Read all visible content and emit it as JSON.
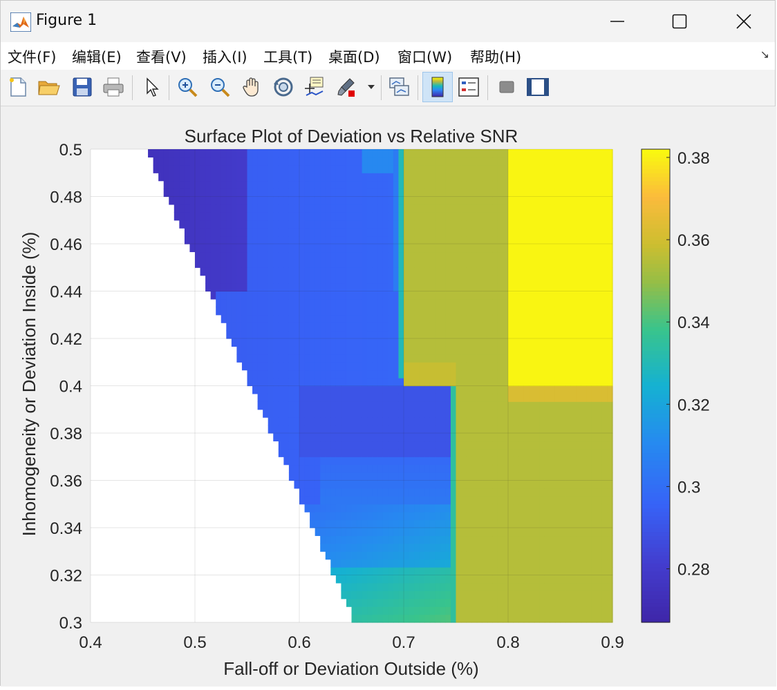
{
  "window": {
    "title": "Figure 1"
  },
  "menu": {
    "items": [
      "文件(F)",
      "编辑(E)",
      "查看(V)",
      "插入(I)",
      "工具(T)",
      "桌面(D)",
      "窗口(W)",
      "帮助(H)"
    ]
  },
  "toolbar": {
    "buttons": [
      {
        "icon": "new-figure-icon"
      },
      {
        "icon": "open-folder-icon"
      },
      {
        "icon": "save-icon"
      },
      {
        "icon": "print-icon"
      },
      {
        "icon": "pointer-icon"
      },
      {
        "icon": "zoom-in-icon"
      },
      {
        "icon": "zoom-out-icon"
      },
      {
        "icon": "pan-hand-icon"
      },
      {
        "icon": "rotate-3d-icon"
      },
      {
        "icon": "data-cursor-icon"
      },
      {
        "icon": "brush-icon"
      },
      {
        "icon": "link-plot-icon"
      },
      {
        "icon": "colorbar-icon"
      },
      {
        "icon": "legend-icon"
      },
      {
        "icon": "hide-plot-tools-icon"
      },
      {
        "icon": "show-plot-tools-icon"
      }
    ]
  },
  "chart_data": {
    "type": "heatmap",
    "title": "Surface Plot of Deviation vs Relative SNR",
    "xlabel": "Fall-off or Deviation Outside (%)",
    "ylabel": "Inhomogeneity or Deviation Inside (%)",
    "xlim": [
      0.4,
      0.9
    ],
    "ylim": [
      0.3,
      0.5
    ],
    "xticks": [
      "0.4",
      "0.5",
      "0.6",
      "0.7",
      "0.8",
      "0.9"
    ],
    "yticks": [
      "0.3",
      "0.32",
      "0.34",
      "0.36",
      "0.38",
      "0.4",
      "0.42",
      "0.44",
      "0.46",
      "0.48",
      "0.5"
    ],
    "grid": true,
    "colormap": "parula",
    "clim": [
      0.267,
      0.382
    ],
    "colorbar_ticks": [
      "0.28",
      "0.3",
      "0.32",
      "0.34",
      "0.36",
      "0.38"
    ],
    "valid_region": "x + y >= ~0.955 (blank area lower-left)",
    "regions": [
      {
        "desc": "x 0.45-0.55, y 0.44-0.5",
        "value": 0.275
      },
      {
        "desc": "x 0.55-0.7, y 0.35-0.5",
        "value": 0.295
      },
      {
        "desc": "x 0.6-0.75, y 0.3-0.35",
        "value": 0.31
      },
      {
        "desc": "x 0.7-0.8, y 0.3-0.5",
        "value": 0.355
      },
      {
        "desc": "x 0.8-0.9, y 0.4-0.5",
        "value": 0.381
      },
      {
        "desc": "x 0.75-0.9, y 0.3-0.4",
        "value": 0.355
      }
    ]
  }
}
